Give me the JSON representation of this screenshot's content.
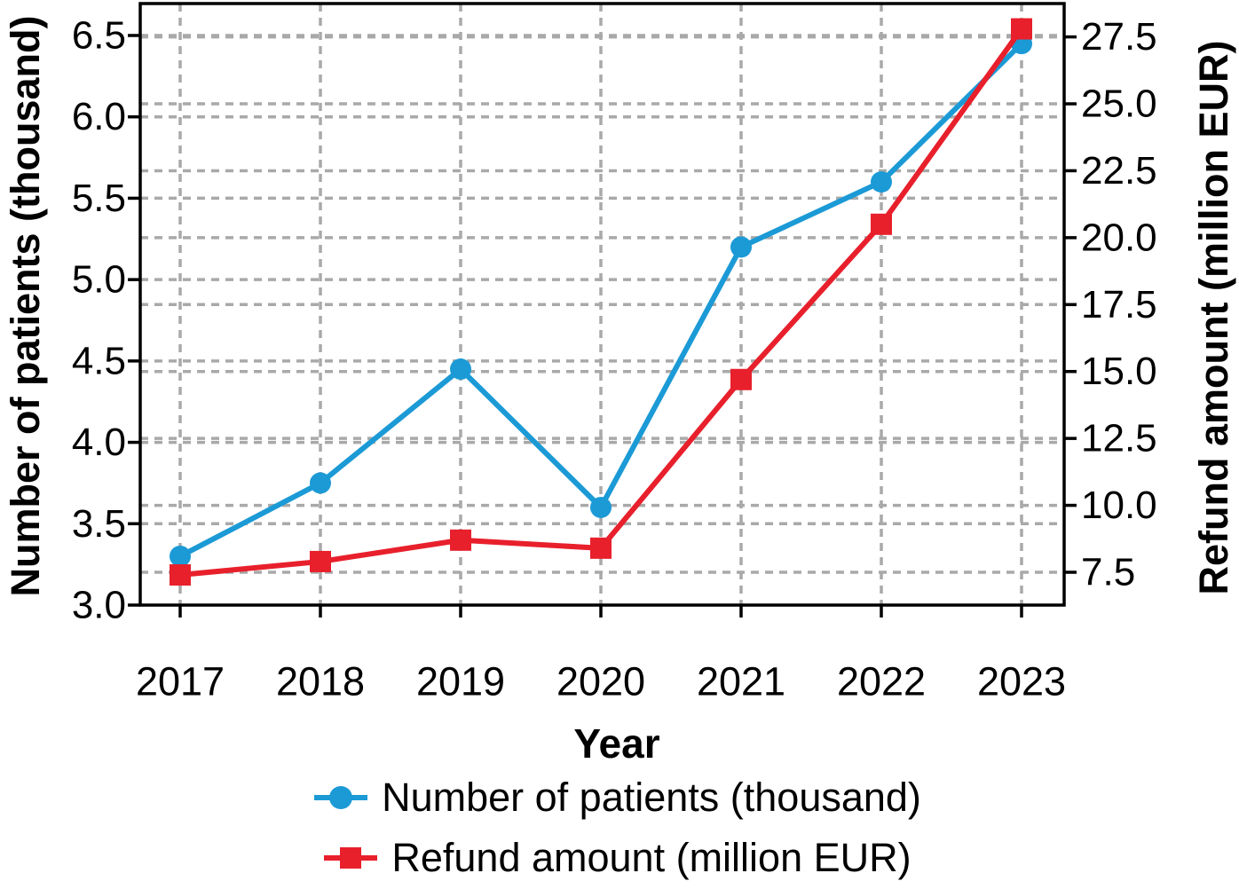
{
  "chart_data": {
    "type": "line",
    "title": "",
    "x_label": "Year",
    "x": [
      2017,
      2018,
      2019,
      2020,
      2021,
      2022,
      2023
    ],
    "x_tick_labels": [
      "2017",
      "2018",
      "2019",
      "2020",
      "2021",
      "2022",
      "2023"
    ],
    "left_axis": {
      "label": "Number of patients (thousand)",
      "ticks": [
        3.0,
        3.5,
        4.0,
        4.5,
        5.0,
        5.5,
        6.0,
        6.5
      ],
      "tick_labels": [
        "3.0",
        "3.5",
        "4.0",
        "4.5",
        "5.0",
        "5.5",
        "6.0",
        "6.5"
      ],
      "min": 3.0,
      "max": 6.7
    },
    "right_axis": {
      "label": "Refund amount (million EUR)",
      "ticks": [
        7.5,
        10.0,
        12.5,
        15.0,
        17.5,
        20.0,
        22.5,
        25.0,
        27.5
      ],
      "tick_labels": [
        "7.5",
        "10.0",
        "12.5",
        "15.0",
        "17.5",
        "20.0",
        "22.5",
        "25.0",
        "27.5"
      ],
      "min": 6.3,
      "max": 28.8
    },
    "series": [
      {
        "name": "Number of patients (thousand)",
        "axis": "left",
        "color": "#1b9ad6",
        "marker": "circle",
        "values": [
          3.3,
          3.75,
          4.45,
          3.6,
          5.2,
          5.6,
          6.45
        ]
      },
      {
        "name": "Refund amount (million EUR)",
        "axis": "right",
        "color": "#e8202c",
        "marker": "square",
        "values": [
          7.4,
          7.9,
          8.7,
          8.4,
          14.7,
          20.5,
          27.8
        ]
      }
    ],
    "grid": {
      "show": true,
      "color": "#a9a9a9",
      "style": "dashed",
      "sources": "both-y-axes-and-x"
    },
    "legend": {
      "position": "bottom",
      "entries": [
        "Number of patients (thousand)",
        "Refund amount (million EUR)"
      ]
    },
    "frame_color": "#000000"
  }
}
